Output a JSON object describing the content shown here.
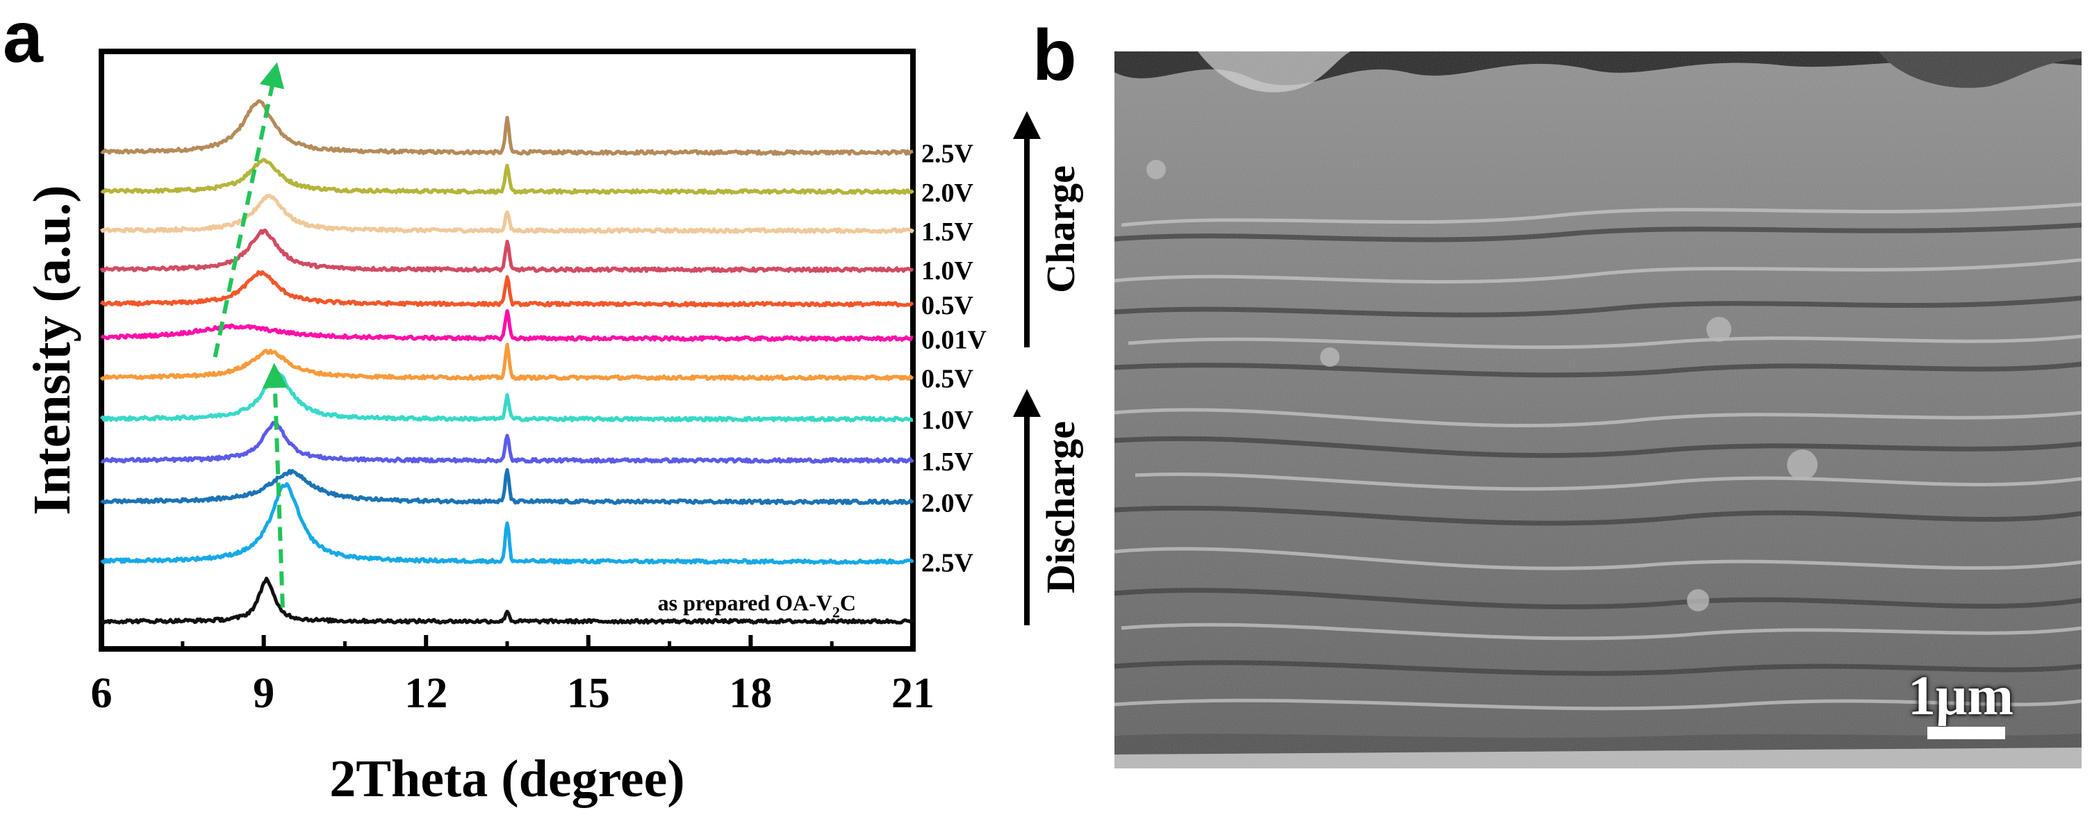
{
  "panel_a": {
    "label": "a"
  },
  "panel_b": {
    "label": "b",
    "scale_bar_label": "1μm"
  },
  "chart_data": {
    "type": "line",
    "title": "",
    "xlabel": "2Theta (degree)",
    "ylabel": "Intensity (a.u.)",
    "xlim": [
      6,
      21
    ],
    "xticks": [
      6,
      9,
      12,
      15,
      18,
      21
    ],
    "grid": false,
    "side_labels": [
      {
        "text": "Charge",
        "direction": "up"
      },
      {
        "text": "Discharge",
        "direction": "up"
      }
    ],
    "series": [
      {
        "name": "2.5V",
        "state": "charge",
        "color": "#b58a5a",
        "peak_x": 8.9,
        "peak_height": 2.9,
        "peak_width": 0.4,
        "sharp_peak_height": 1.9,
        "baseline": 10.8
      },
      {
        "name": "2.0V",
        "state": "charge",
        "color": "#b5b43a",
        "peak_x": 9.0,
        "peak_height": 1.8,
        "peak_width": 0.4,
        "sharp_peak_height": 1.4,
        "baseline": 9.95
      },
      {
        "name": "1.5V",
        "state": "charge",
        "color": "#f0c89a",
        "peak_x": 9.1,
        "peak_height": 2.0,
        "peak_width": 0.38,
        "sharp_peak_height": 1.1,
        "baseline": 9.1
      },
      {
        "name": "1.0V",
        "state": "charge",
        "color": "#d24b62",
        "peak_x": 9.0,
        "peak_height": 2.2,
        "peak_width": 0.38,
        "sharp_peak_height": 1.6,
        "baseline": 8.25
      },
      {
        "name": "0.5V",
        "state": "charge",
        "color": "#f2562a",
        "peak_x": 8.95,
        "peak_height": 1.8,
        "peak_width": 0.42,
        "sharp_peak_height": 1.6,
        "baseline": 7.5
      },
      {
        "name": "0.01V",
        "state": "discharge",
        "color": "#ff0fa8",
        "peak_x": 8.5,
        "peak_height": 0.7,
        "peak_width": 1.1,
        "sharp_peak_height": 1.6,
        "baseline": 6.75
      },
      {
        "name": "0.5V",
        "state": "discharge",
        "color": "#f79a3a",
        "peak_x": 9.1,
        "peak_height": 1.5,
        "peak_width": 0.5,
        "sharp_peak_height": 1.8,
        "baseline": 5.9
      },
      {
        "name": "1.0V",
        "state": "discharge",
        "color": "#36d9c8",
        "peak_x": 9.25,
        "peak_height": 2.6,
        "peak_width": 0.38,
        "sharp_peak_height": 1.3,
        "baseline": 5.0
      },
      {
        "name": "1.5V",
        "state": "discharge",
        "color": "#5a5be8",
        "peak_x": 9.2,
        "peak_height": 2.1,
        "peak_width": 0.32,
        "sharp_peak_height": 1.4,
        "baseline": 4.1
      },
      {
        "name": "2.0V",
        "state": "discharge",
        "color": "#1b73b5",
        "peak_x": 9.5,
        "peak_height": 1.7,
        "peak_width": 0.55,
        "sharp_peak_height": 1.8,
        "baseline": 3.2
      },
      {
        "name": "2.5V",
        "state": "discharge",
        "color": "#16a9e6",
        "peak_x": 9.4,
        "peak_height": 4.4,
        "peak_width": 0.38,
        "sharp_peak_height": 2.2,
        "baseline": 1.9
      },
      {
        "name": "as prepared OA-V2C",
        "label_main": "as prepared OA-V",
        "label_sub": "2",
        "label_end": "C",
        "state": "pristine",
        "color": "#111111",
        "peak_x": 9.05,
        "peak_height": 2.4,
        "peak_width": 0.2,
        "sharp_peak_height": 0.6,
        "baseline": 0.6
      }
    ],
    "sharp_peak_x": 13.5,
    "annotations": [
      {
        "type": "dashed-arrow",
        "color": "#22c35a",
        "from": [
          9.35,
          0.9
        ],
        "to": [
          9.2,
          5.95
        ]
      },
      {
        "type": "dashed-arrow",
        "color": "#22c35a",
        "from": [
          8.1,
          6.35
        ],
        "to": [
          9.2,
          12.5
        ]
      }
    ]
  },
  "colors": {
    "axis": "#000000",
    "sem_background": "#7a7a7a"
  }
}
